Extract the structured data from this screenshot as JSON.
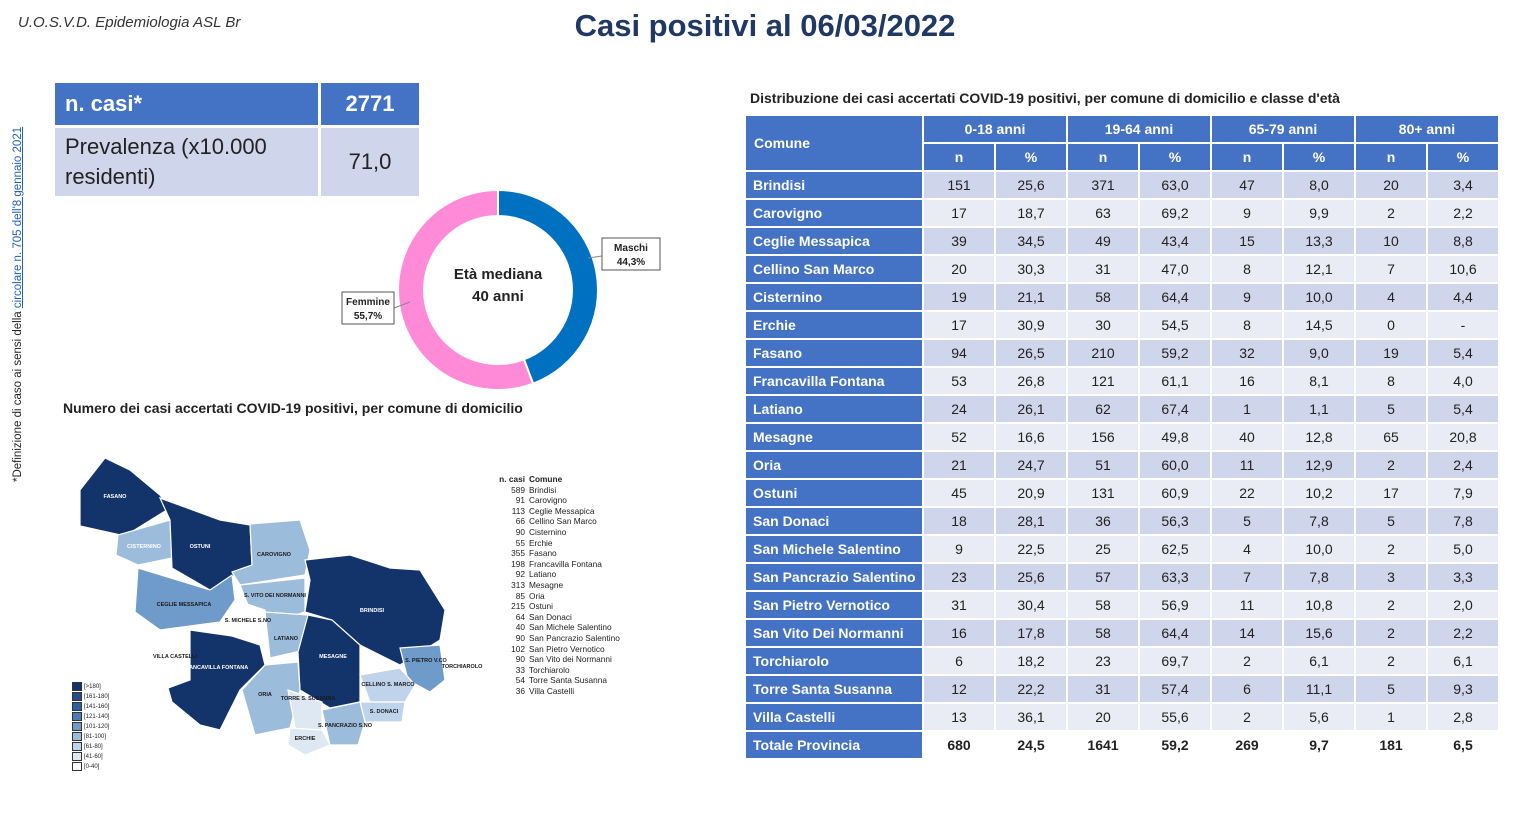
{
  "header": {
    "org": "U.O.S.V.D. Epidemiologia ASL Br",
    "title": "Casi positivi al 06/03/2022"
  },
  "side_note": {
    "prefix": "*Definizione di caso ai sensi della ",
    "link": "circolare n. 705 dell'8 gennaio 2021"
  },
  "kpi": {
    "cases_label": "n. casi*",
    "cases_value": "2771",
    "prev_label": "Prevalenza (x10.000 residenti)",
    "prev_value": "71,0"
  },
  "colors": {
    "header_blue": "#4472c4",
    "title_navy": "#1f3864",
    "row_band_dark": "#cfd5ea",
    "row_band_light": "#e9ebf5",
    "male": "#0070c0",
    "female": "#ff8ad8"
  },
  "chart_data": [
    {
      "type": "pie",
      "style": "donut",
      "center_text": [
        "Età mediana",
        "40 anni"
      ],
      "slices": [
        {
          "label": "Maschi",
          "value": 44.3,
          "display": "44,3%",
          "color": "#0070c0"
        },
        {
          "label": "Femmine",
          "value": 55.7,
          "display": "55,7%",
          "color": "#ff8ad8"
        }
      ]
    },
    {
      "type": "table",
      "title": "Distribuzione dei casi accertati COVID-19 positivi, per comune di domicilio e classe d'età",
      "row_header": "Comune",
      "age_groups": [
        "0-18 anni",
        "19-64 anni",
        "65-79 anni",
        "80+ anni"
      ],
      "sub_headers": [
        "n",
        "%"
      ],
      "rows": [
        {
          "comune": "Brindisi",
          "values": [
            "151",
            "25,6",
            "371",
            "63,0",
            "47",
            "8,0",
            "20",
            "3,4"
          ]
        },
        {
          "comune": "Carovigno",
          "values": [
            "17",
            "18,7",
            "63",
            "69,2",
            "9",
            "9,9",
            "2",
            "2,2"
          ]
        },
        {
          "comune": "Ceglie Messapica",
          "values": [
            "39",
            "34,5",
            "49",
            "43,4",
            "15",
            "13,3",
            "10",
            "8,8"
          ]
        },
        {
          "comune": "Cellino San Marco",
          "values": [
            "20",
            "30,3",
            "31",
            "47,0",
            "8",
            "12,1",
            "7",
            "10,6"
          ]
        },
        {
          "comune": "Cisternino",
          "values": [
            "19",
            "21,1",
            "58",
            "64,4",
            "9",
            "10,0",
            "4",
            "4,4"
          ]
        },
        {
          "comune": "Erchie",
          "values": [
            "17",
            "30,9",
            "30",
            "54,5",
            "8",
            "14,5",
            "0",
            "-"
          ]
        },
        {
          "comune": "Fasano",
          "values": [
            "94",
            "26,5",
            "210",
            "59,2",
            "32",
            "9,0",
            "19",
            "5,4"
          ]
        },
        {
          "comune": "Francavilla Fontana",
          "values": [
            "53",
            "26,8",
            "121",
            "61,1",
            "16",
            "8,1",
            "8",
            "4,0"
          ]
        },
        {
          "comune": "Latiano",
          "values": [
            "24",
            "26,1",
            "62",
            "67,4",
            "1",
            "1,1",
            "5",
            "5,4"
          ]
        },
        {
          "comune": "Mesagne",
          "values": [
            "52",
            "16,6",
            "156",
            "49,8",
            "40",
            "12,8",
            "65",
            "20,8"
          ]
        },
        {
          "comune": "Oria",
          "values": [
            "21",
            "24,7",
            "51",
            "60,0",
            "11",
            "12,9",
            "2",
            "2,4"
          ]
        },
        {
          "comune": "Ostuni",
          "values": [
            "45",
            "20,9",
            "131",
            "60,9",
            "22",
            "10,2",
            "17",
            "7,9"
          ]
        },
        {
          "comune": "San Donaci",
          "values": [
            "18",
            "28,1",
            "36",
            "56,3",
            "5",
            "7,8",
            "5",
            "7,8"
          ]
        },
        {
          "comune": "San Michele Salentino",
          "values": [
            "9",
            "22,5",
            "25",
            "62,5",
            "4",
            "10,0",
            "2",
            "5,0"
          ]
        },
        {
          "comune": "San Pancrazio Salentino",
          "values": [
            "23",
            "25,6",
            "57",
            "63,3",
            "7",
            "7,8",
            "3",
            "3,3"
          ]
        },
        {
          "comune": "San Pietro Vernotico",
          "values": [
            "31",
            "30,4",
            "58",
            "56,9",
            "11",
            "10,8",
            "2",
            "2,0"
          ]
        },
        {
          "comune": "San Vito Dei Normanni",
          "values": [
            "16",
            "17,8",
            "58",
            "64,4",
            "14",
            "15,6",
            "2",
            "2,2"
          ]
        },
        {
          "comune": "Torchiarolo",
          "values": [
            "6",
            "18,2",
            "23",
            "69,7",
            "2",
            "6,1",
            "2",
            "6,1"
          ]
        },
        {
          "comune": "Torre Santa Susanna",
          "values": [
            "12",
            "22,2",
            "31",
            "57,4",
            "6",
            "11,1",
            "5",
            "9,3"
          ]
        },
        {
          "comune": "Villa Castelli",
          "values": [
            "13",
            "36,1",
            "20",
            "55,6",
            "2",
            "5,6",
            "1",
            "2,8"
          ]
        }
      ],
      "total": {
        "comune": "Totale Provincia",
        "values": [
          "680",
          "24,5",
          "1641",
          "59,2",
          "269",
          "9,7",
          "181",
          "6,5"
        ]
      }
    }
  ],
  "map": {
    "title": "Numero dei casi accertati COVID-19 positivi, per comune di domicilio",
    "legend_header": {
      "n": "n. casi",
      "comune": "Comune"
    },
    "legend": [
      {
        "n": "589",
        "comune": "Brindisi"
      },
      {
        "n": "91",
        "comune": "Carovigno"
      },
      {
        "n": "113",
        "comune": "Ceglie Messapica"
      },
      {
        "n": "66",
        "comune": "Cellino San Marco"
      },
      {
        "n": "90",
        "comune": "Cisternino"
      },
      {
        "n": "55",
        "comune": "Erchie"
      },
      {
        "n": "355",
        "comune": "Fasano"
      },
      {
        "n": "198",
        "comune": "Francavilla Fontana"
      },
      {
        "n": "92",
        "comune": "Latiano"
      },
      {
        "n": "313",
        "comune": "Mesagne"
      },
      {
        "n": "85",
        "comune": "Oria"
      },
      {
        "n": "215",
        "comune": "Ostuni"
      },
      {
        "n": "64",
        "comune": "San Donaci"
      },
      {
        "n": "40",
        "comune": "San Michele Salentino"
      },
      {
        "n": "90",
        "comune": "San Pancrazio Salentino"
      },
      {
        "n": "102",
        "comune": "San Pietro Vernotico"
      },
      {
        "n": "90",
        "comune": "San Vito dei Normanni"
      },
      {
        "n": "33",
        "comune": "Torchiarolo"
      },
      {
        "n": "54",
        "comune": "Torre Santa Susanna"
      },
      {
        "n": "36",
        "comune": "Villa Castelli"
      }
    ],
    "scale": [
      {
        "label": "[>180]",
        "color": "#13336b"
      },
      {
        "label": "[161-180]",
        "color": "#234d8a"
      },
      {
        "label": "[141-160]",
        "color": "#2f5f9e"
      },
      {
        "label": "[121-140]",
        "color": "#4a7db5"
      },
      {
        "label": "[101-120]",
        "color": "#6e9bc9"
      },
      {
        "label": "[81-100]",
        "color": "#9cbcdc"
      },
      {
        "label": "[61-80]",
        "color": "#bfd4ea"
      },
      {
        "label": "[41-60]",
        "color": "#dde8f3"
      },
      {
        "label": "[0-40]",
        "color": "#ffffff"
      }
    ],
    "regions": [
      {
        "id": "fasano",
        "label": "FASANO",
        "color": "#13336b"
      },
      {
        "id": "cisternino",
        "label": "CISTERNINO",
        "color": "#9cbcdc"
      },
      {
        "id": "ostuni",
        "label": "OSTUNI",
        "color": "#13336b"
      },
      {
        "id": "carovigno",
        "label": "CAROVIGNO",
        "color": "#9cbcdc"
      },
      {
        "id": "ceglie",
        "label": "CEGLIE MESSAPICA",
        "color": "#6e9bc9"
      },
      {
        "id": "sanvito",
        "label": "S. VITO DEI NORMANNI",
        "color": "#9cbcdc"
      },
      {
        "id": "sanmichele",
        "label": "S. MICHELE S.NO",
        "color": "#ffffff"
      },
      {
        "id": "brindisi",
        "label": "BRINDISI",
        "color": "#13336b"
      },
      {
        "id": "latiano",
        "label": "LATIANO",
        "color": "#9cbcdc"
      },
      {
        "id": "villacastelli",
        "label": "VILLA CASTELLI",
        "color": "#ffffff"
      },
      {
        "id": "francavilla",
        "label": "FRANCAVILLA FONTANA",
        "color": "#13336b"
      },
      {
        "id": "mesagne",
        "label": "MESAGNE",
        "color": "#13336b"
      },
      {
        "id": "sanpietro",
        "label": "S. PIETRO V.CO",
        "color": "#6e9bc9"
      },
      {
        "id": "torchiarolo",
        "label": "TORCHIAROLO",
        "color": "#ffffff"
      },
      {
        "id": "oria",
        "label": "ORIA",
        "color": "#9cbcdc"
      },
      {
        "id": "torre",
        "label": "TORRE S. SUSANNA",
        "color": "#dde8f3"
      },
      {
        "id": "cellino",
        "label": "CELLINO S. MARCO",
        "color": "#bfd4ea"
      },
      {
        "id": "sandonaci",
        "label": "S. DONACI",
        "color": "#bfd4ea"
      },
      {
        "id": "sanpancrazio",
        "label": "S. PANCRAZIO S.NO",
        "color": "#9cbcdc"
      },
      {
        "id": "erchie",
        "label": "ERCHIE",
        "color": "#dde8f3"
      }
    ]
  }
}
